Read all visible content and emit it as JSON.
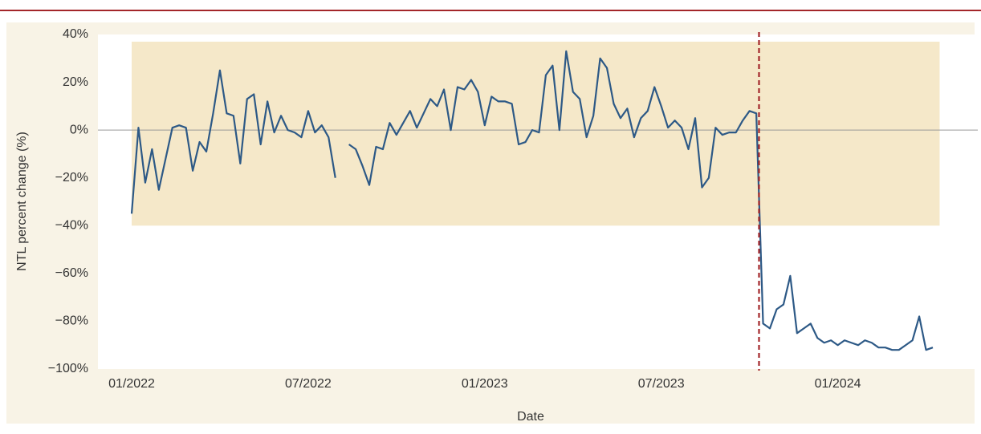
{
  "chart_data": {
    "type": "line",
    "xlabel": "Date",
    "ylabel": "NTL percent change (%)",
    "categories": [
      "01/2022",
      null,
      null,
      null,
      null,
      null,
      null,
      null,
      null,
      null,
      null,
      null,
      null,
      null,
      null,
      null,
      null,
      null,
      null,
      null,
      null,
      null,
      null,
      null,
      null,
      null,
      "07/2022",
      null,
      null,
      null,
      null,
      null,
      null,
      null,
      null,
      null,
      null,
      null,
      null,
      null,
      null,
      null,
      null,
      null,
      null,
      null,
      null,
      null,
      null,
      null,
      null,
      null,
      "01/2023",
      null,
      null,
      null,
      null,
      null,
      null,
      null,
      null,
      null,
      null,
      null,
      null,
      null,
      null,
      null,
      null,
      null,
      null,
      null,
      null,
      null,
      null,
      null,
      null,
      null,
      "07/2023",
      null,
      null,
      null,
      null,
      null,
      null,
      null,
      null,
      null,
      null,
      null,
      null,
      null,
      null,
      null,
      null,
      null,
      null,
      null,
      null,
      null,
      null,
      null,
      null,
      null,
      "01/2024",
      null,
      null,
      null,
      null,
      null,
      null,
      null,
      null,
      null,
      null,
      null,
      null,
      null,
      null
    ],
    "values": [
      -35,
      1,
      -22,
      -8,
      -25,
      -12,
      1,
      2,
      1,
      -17,
      -5,
      -9,
      7,
      25,
      7,
      6,
      -14,
      13,
      15,
      -6,
      12,
      -1,
      6,
      0,
      -1,
      -3,
      8,
      -1,
      2,
      -3,
      -20,
      null,
      -6,
      -8,
      -15,
      -23,
      -7,
      -8,
      3,
      -2,
      3,
      8,
      1,
      7,
      13,
      10,
      17,
      0,
      18,
      17,
      21,
      16,
      2,
      14,
      12,
      12,
      11,
      -6,
      -5,
      0,
      -1,
      23,
      27,
      0,
      33,
      16,
      13,
      -3,
      6,
      30,
      26,
      11,
      5,
      9,
      -3,
      5,
      8,
      18,
      10,
      1,
      4,
      1,
      -8,
      5,
      -24,
      -20,
      1,
      -2,
      -1,
      -1,
      4,
      8,
      7,
      -81,
      -83,
      -75,
      -73,
      -61,
      -85,
      -83,
      -81,
      -87,
      -89,
      -88,
      -90,
      -88,
      -89,
      -90,
      -88,
      -89,
      -91,
      -91,
      -92,
      -92,
      -90,
      -88,
      -78,
      -92,
      -91
    ],
    "color": "#2d5986",
    "shaded_range": [
      -40,
      37
    ],
    "shade_color": "#f5e8c9",
    "event_index": 92.4,
    "event_color": "#a3262a",
    "ylim": [
      -100,
      40
    ],
    "yticks": [
      {
        "value": -100,
        "label": "−100%"
      },
      {
        "value": -80,
        "label": "−80%"
      },
      {
        "value": -60,
        "label": "−60%"
      },
      {
        "value": -40,
        "label": "−40%"
      },
      {
        "value": -20,
        "label": "−20%"
      },
      {
        "value": 0,
        "label": "0%"
      },
      {
        "value": 20,
        "label": "20%"
      },
      {
        "value": 40,
        "label": "40%"
      }
    ],
    "zero_line": true
  }
}
